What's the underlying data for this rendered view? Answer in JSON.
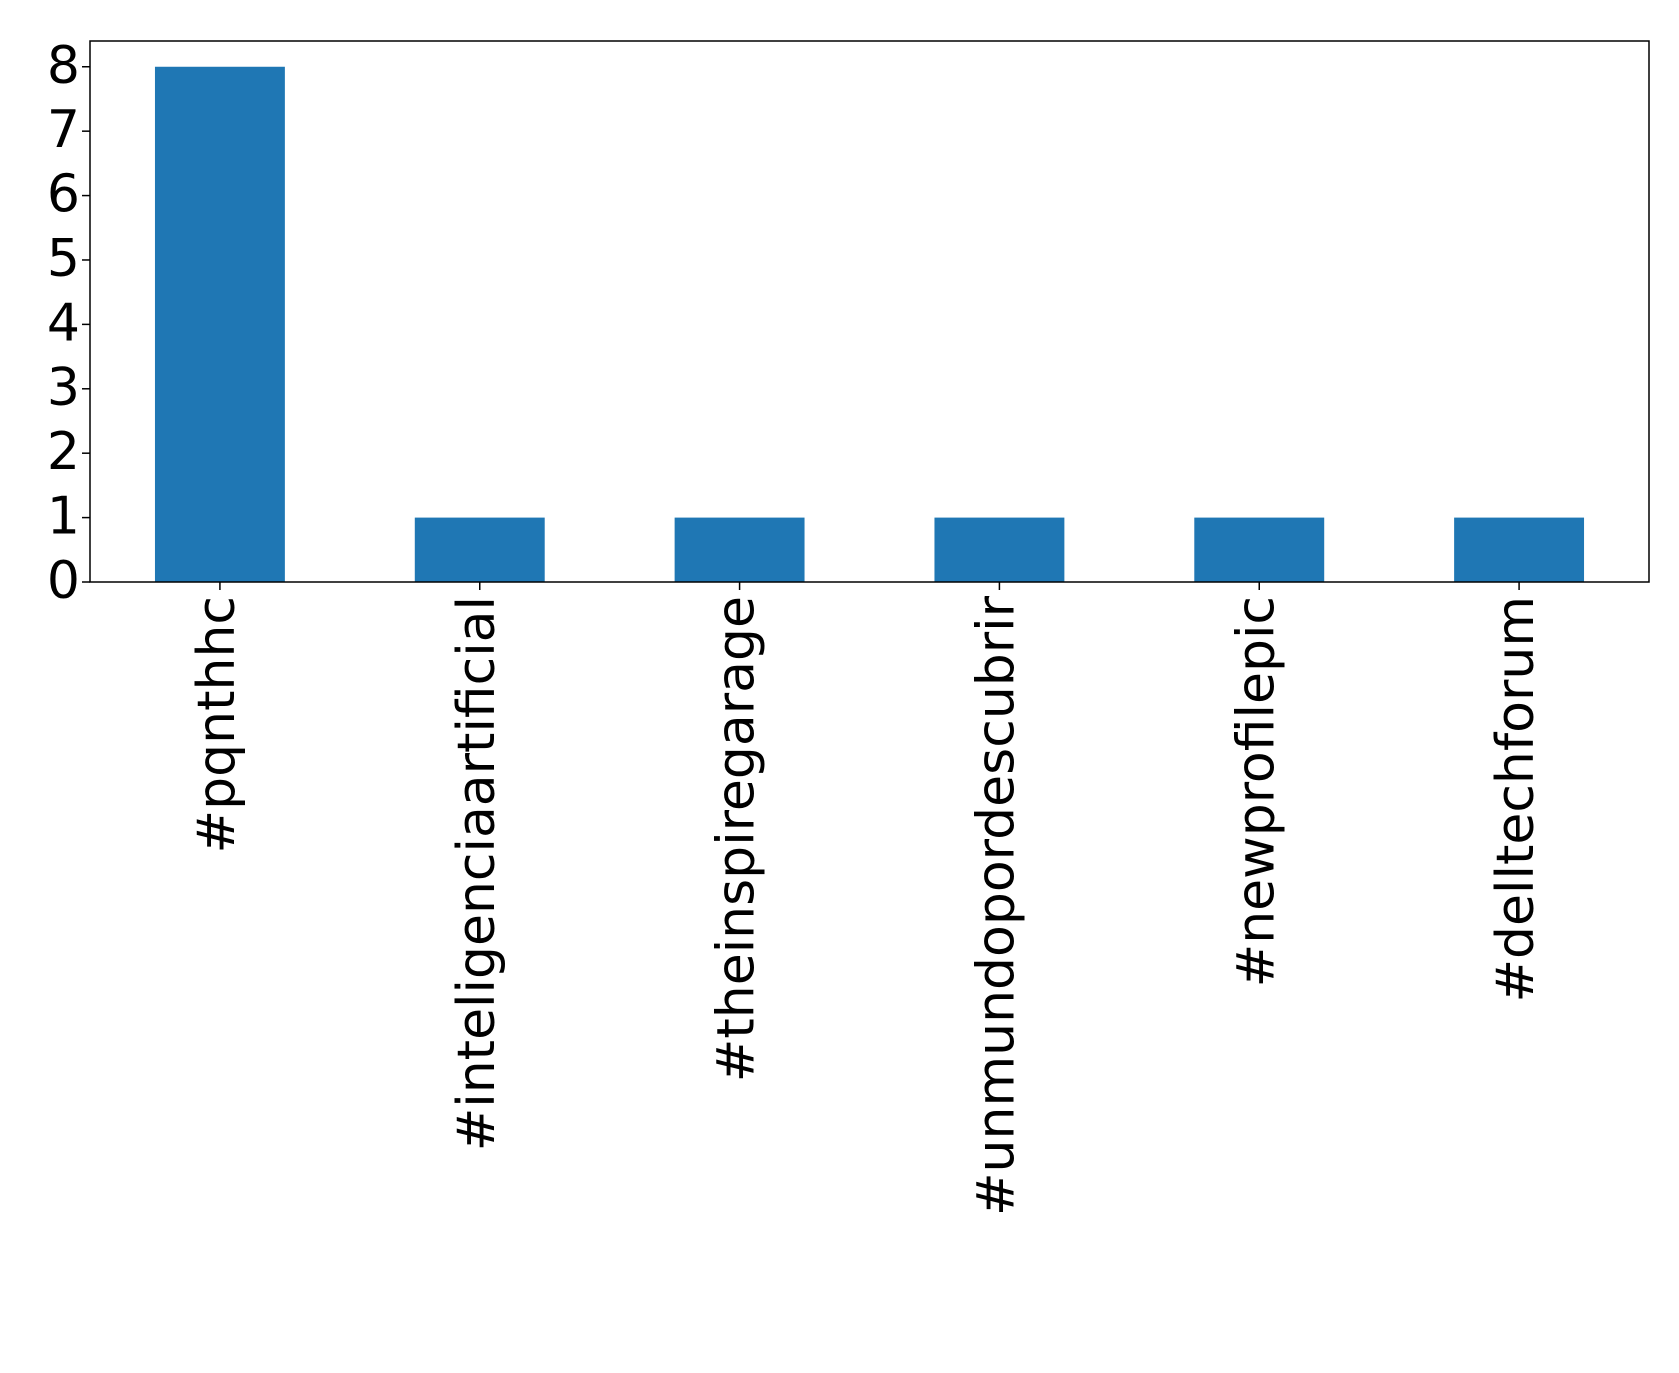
{
  "chart_data": {
    "type": "bar",
    "categories": [
      "#pqnthhc",
      "#inteligenciaartificial",
      "#theinspiregarage",
      "#unmundopordescubrir",
      "#newprofilepic",
      "#delltechforum"
    ],
    "values": [
      8,
      1,
      1,
      1,
      1,
      1
    ],
    "color": "#1f77b4",
    "ylim": [
      0,
      8.4
    ],
    "yticks": [
      0,
      1,
      2,
      3,
      4,
      5,
      6,
      7,
      8
    ],
    "grid": false
  }
}
